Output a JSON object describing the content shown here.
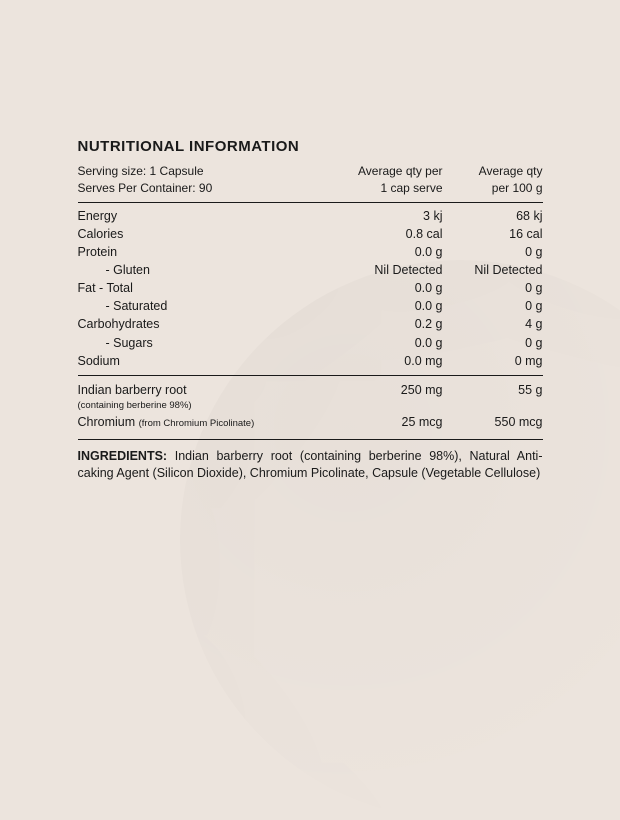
{
  "title": "NUTRITIONAL INFORMATION",
  "meta": {
    "serving_size_label": "Serving size: 1 Capsule",
    "serves_label": "Serves Per Container: 90",
    "col1_line1": "Average qty per",
    "col1_line2": "1 cap serve",
    "col2_line1": "Average qty",
    "col2_line2": "per 100 g"
  },
  "rows_a": [
    {
      "name": "Energy",
      "indent": false,
      "v1": "3 kj",
      "v2": "68 kj"
    },
    {
      "name": "Calories",
      "indent": false,
      "v1": "0.8 cal",
      "v2": "16 cal"
    },
    {
      "name": "Protein",
      "indent": false,
      "v1": "0.0 g",
      "v2": "0 g"
    },
    {
      "name": "- Gluten",
      "indent": true,
      "v1": "Nil Detected",
      "v2": "Nil Detected"
    },
    {
      "name": "Fat  - Total",
      "indent": false,
      "v1": "0.0 g",
      "v2": "0 g"
    },
    {
      "name": "- Saturated",
      "indent": true,
      "v1": "0.0 g",
      "v2": "0 g"
    },
    {
      "name": "Carbohydrates",
      "indent": false,
      "v1": "0.2 g",
      "v2": "4 g"
    },
    {
      "name": "- Sugars",
      "indent": true,
      "v1": "0.0 g",
      "v2": "0 g"
    },
    {
      "name": "Sodium",
      "indent": false,
      "v1": "0.0 mg",
      "v2": "0 mg"
    }
  ],
  "rows_b": [
    {
      "name": "Indian barberry root",
      "sub": "(containing berberine 98%)",
      "v1": "250 mg",
      "v2": "55 g"
    },
    {
      "name": "Chromium ",
      "sub2": "(from Chromium Picolinate)",
      "v1": "25 mcg",
      "v2": "550 mcg"
    }
  ],
  "ingredients_label": "INGREDIENTS:",
  "ingredients_text": " Indian barberry root (containing berberine 98%), Natural Anti-caking Agent (Silicon Dioxide), Chromium Picolinate, Capsule (Vegetable Cellulose)"
}
